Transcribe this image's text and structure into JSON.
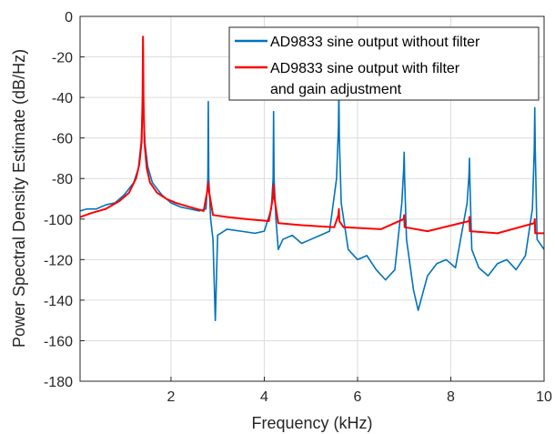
{
  "chart_data": {
    "type": "line",
    "title": "",
    "xlabel": "Frequency (kHz)",
    "ylabel": "Power Spectral Density Estimate (dB/Hz)",
    "xlim": [
      0.05,
      10
    ],
    "ylim": [
      -180,
      0
    ],
    "x_ticks": [
      2,
      4,
      6,
      8,
      10
    ],
    "x_tick_labels": [
      "2",
      "4",
      "6",
      "8",
      "10"
    ],
    "y_ticks": [
      -180,
      -160,
      -140,
      -120,
      -100,
      -80,
      -60,
      -40,
      -20,
      0
    ],
    "y_tick_labels": [
      "-180",
      "-160",
      "-140",
      "-120",
      "-100",
      "-80",
      "-60",
      "-40",
      "-20",
      "0"
    ],
    "grid": true,
    "legend_position": "top-right",
    "series": [
      {
        "name": "AD9833 sine output without filter",
        "color": "#0072BD",
        "x": [
          0.05,
          0.2,
          0.4,
          0.6,
          0.8,
          1.0,
          1.2,
          1.3,
          1.36,
          1.39,
          1.4,
          1.41,
          1.44,
          1.5,
          1.6,
          1.8,
          2.0,
          2.2,
          2.4,
          2.6,
          2.75,
          2.79,
          2.8,
          2.81,
          2.85,
          2.9,
          2.95,
          3.0,
          3.2,
          3.5,
          3.8,
          4.0,
          4.15,
          4.19,
          4.2,
          4.21,
          4.25,
          4.3,
          4.4,
          4.6,
          4.8,
          5.0,
          5.2,
          5.4,
          5.55,
          5.59,
          5.6,
          5.61,
          5.65,
          5.8,
          6.0,
          6.2,
          6.4,
          6.6,
          6.8,
          6.95,
          6.99,
          7.0,
          7.01,
          7.05,
          7.2,
          7.3,
          7.5,
          7.7,
          7.9,
          8.1,
          8.35,
          8.39,
          8.4,
          8.41,
          8.45,
          8.6,
          8.8,
          9.0,
          9.2,
          9.4,
          9.6,
          9.75,
          9.79,
          9.8,
          9.81,
          9.85,
          10.0
        ],
        "y": [
          -96,
          -95,
          -95,
          -93,
          -92,
          -88,
          -82,
          -75,
          -62,
          -45,
          -10,
          -45,
          -62,
          -74,
          -82,
          -88,
          -92,
          -94,
          -95,
          -96,
          -95,
          -80,
          -42,
          -80,
          -100,
          -110,
          -150,
          -108,
          -105,
          -106,
          -107,
          -106,
          -95,
          -80,
          -47,
          -80,
          -100,
          -115,
          -110,
          -108,
          -112,
          -110,
          -108,
          -106,
          -80,
          -55,
          -36,
          -60,
          -92,
          -115,
          -120,
          -118,
          -125,
          -130,
          -125,
          -92,
          -75,
          -67,
          -80,
          -110,
          -135,
          -145,
          -128,
          -122,
          -120,
          -124,
          -92,
          -78,
          -70,
          -82,
          -115,
          -124,
          -128,
          -122,
          -120,
          -125,
          -118,
          -95,
          -65,
          -45,
          -65,
          -110,
          -115
        ]
      },
      {
        "name": "AD9833 sine output with filter\nand gain adjustment",
        "color": "#FF0000",
        "x": [
          0.05,
          0.3,
          0.6,
          0.9,
          1.1,
          1.25,
          1.32,
          1.37,
          1.39,
          1.4,
          1.41,
          1.43,
          1.48,
          1.55,
          1.7,
          1.9,
          2.1,
          2.4,
          2.7,
          2.78,
          2.8,
          2.82,
          2.9,
          3.2,
          3.6,
          4.1,
          4.18,
          4.2,
          4.22,
          4.3,
          4.8,
          5.5,
          5.59,
          5.6,
          5.61,
          5.7,
          6.5,
          6.99,
          7.0,
          7.01,
          7.5,
          8.39,
          8.4,
          8.41,
          9.0,
          9.79,
          9.8,
          9.81,
          10.0
        ],
        "y": [
          -99,
          -97,
          -95,
          -91,
          -87,
          -80,
          -73,
          -62,
          -40,
          -10,
          -40,
          -62,
          -75,
          -82,
          -87,
          -90,
          -92,
          -94,
          -96,
          -86,
          -82,
          -87,
          -98,
          -99,
          -100,
          -101,
          -90,
          -83,
          -90,
          -102,
          -103,
          -104,
          -98,
          -95,
          -101,
          -104,
          -105,
          -100,
          -98,
          -104,
          -106,
          -101,
          -99,
          -106,
          -107,
          -102,
          -100,
          -107,
          -107
        ]
      }
    ]
  }
}
